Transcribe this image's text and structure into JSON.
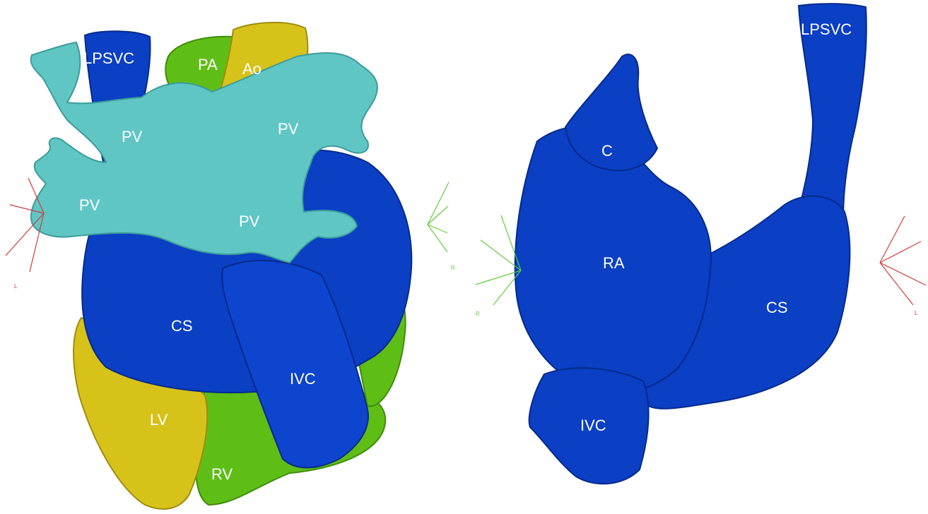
{
  "colors": {
    "blue": "#0b3fc4",
    "blue_dark": "#062a8a",
    "cyan": "#5fc6c4",
    "cyan_dark": "#3c9c9a",
    "yellow": "#d7c21a",
    "yellow_dark": "#9e8c10",
    "green": "#5fbe16",
    "green_dark": "#3f8c0a",
    "red_axis": "#d23a3a",
    "green_axis": "#5fcf3a"
  },
  "left_view": {
    "labels": {
      "lpsvc": "LPSVC",
      "pa": "PA",
      "ao": "Ao",
      "pv_top_left": "PV",
      "pv_top_right": "PV",
      "pv_mid_left": "PV",
      "pv_mid_right": "PV",
      "cs": "CS",
      "ivc": "IVC",
      "lv": "LV",
      "rv": "RV"
    },
    "orientation": {
      "red_letter": "L",
      "green_letter": "R"
    }
  },
  "right_view": {
    "labels": {
      "lpsvc": "LPSVC",
      "c": "C",
      "ra": "RA",
      "cs": "CS",
      "ivc": "IVC"
    },
    "orientation": {
      "green_letter": "R",
      "red_letter": "L"
    }
  }
}
